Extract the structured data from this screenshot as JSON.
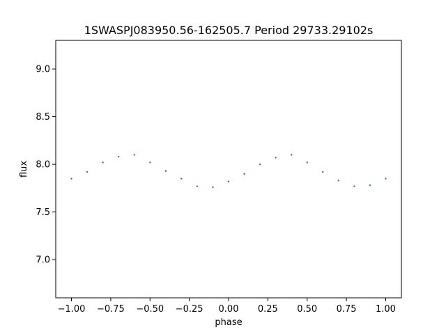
{
  "chart_data": {
    "type": "scatter",
    "title": "1SWASPJ083950.56-162505.7 Period 29733.29102s",
    "xlabel": "phase",
    "ylabel": "flux",
    "xlim": [
      -1.1,
      1.1
    ],
    "ylim": [
      6.6,
      9.3
    ],
    "xticks": [
      -1.0,
      -0.75,
      -0.5,
      -0.25,
      0.0,
      0.25,
      0.5,
      0.75,
      1.0
    ],
    "xtick_labels": [
      "−1.00",
      "−0.75",
      "−0.50",
      "−0.25",
      "0.00",
      "0.25",
      "0.50",
      "0.75",
      "1.00"
    ],
    "yticks": [
      7.0,
      7.5,
      8.0,
      8.5,
      9.0
    ],
    "ytick_labels": [
      "7.0",
      "7.5",
      "8.0",
      "8.5",
      "9.0"
    ],
    "grid": false,
    "marker_color": "#1f77b4",
    "series": [
      {
        "x": [
          -1.0,
          -0.9,
          -0.8,
          -0.7,
          -0.6,
          -0.5,
          -0.4,
          -0.3,
          -0.2,
          -0.1,
          0.0,
          0.1,
          0.2,
          0.3,
          0.4,
          0.5,
          0.6,
          0.7,
          0.8,
          0.9,
          1.0
        ],
        "y": [
          7.85,
          7.92,
          8.02,
          8.08,
          8.1,
          8.02,
          7.93,
          7.85,
          7.77,
          7.76,
          7.82,
          7.9,
          8.0,
          8.07,
          8.1,
          8.02,
          7.92,
          7.83,
          7.77,
          7.78,
          7.85
        ]
      }
    ]
  }
}
